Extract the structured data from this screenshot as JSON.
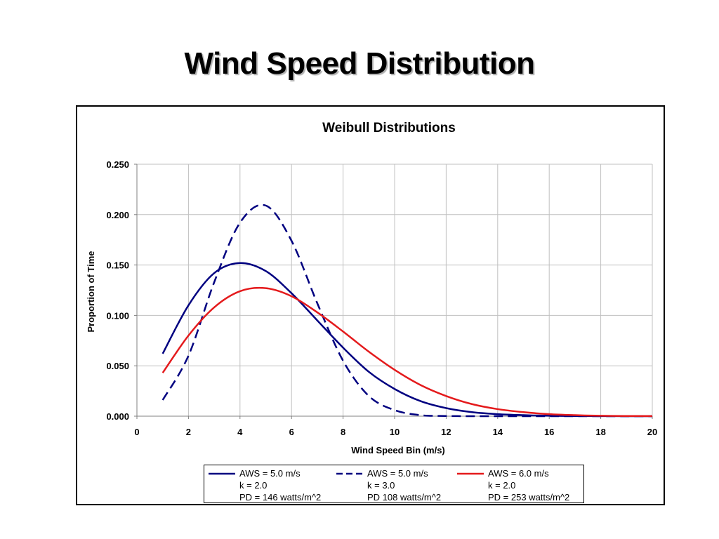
{
  "slide": {
    "title": "Wind Speed Distribution"
  },
  "chart_data": {
    "type": "line",
    "title": "Weibull Distributions",
    "xlabel": "Wind Speed Bin (m/s)",
    "ylabel": "Proportion of Time",
    "xlim": [
      0,
      20
    ],
    "ylim": [
      0,
      0.25
    ],
    "xticks": [
      0,
      2,
      4,
      6,
      8,
      10,
      12,
      14,
      16,
      18,
      20
    ],
    "yticks": [
      "0.000",
      "0.050",
      "0.100",
      "0.150",
      "0.200",
      "0.250"
    ],
    "grid": true,
    "legend_position": "bottom",
    "series": [
      {
        "name": "AWS = 5.0 m/s",
        "legend_lines": [
          "AWS = 5.0 m/s",
          "k = 2.0",
          "PD = 146 watts/m^2"
        ],
        "color": "#000080",
        "dash": "solid",
        "x": [
          1,
          2,
          3,
          4,
          5,
          6,
          7,
          8,
          9,
          10,
          11,
          12,
          13,
          14,
          15,
          16,
          17,
          18,
          19,
          20
        ],
        "y": [
          0.062,
          0.11,
          0.142,
          0.152,
          0.144,
          0.122,
          0.095,
          0.068,
          0.044,
          0.027,
          0.015,
          0.008,
          0.004,
          0.002,
          0.001,
          0.0004,
          0.0002,
          0.0001,
          0.0,
          0.0
        ]
      },
      {
        "name": "AWS = 5.0 m/s",
        "legend_lines": [
          "AWS = 5.0 m/s",
          "k = 3.0",
          "PD 108 watts/m^2"
        ],
        "color": "#000080",
        "dash": "dashed",
        "x": [
          1,
          2,
          3,
          4,
          5,
          6,
          7,
          8,
          9,
          10,
          11,
          12,
          13,
          14,
          15,
          16,
          17,
          18,
          19,
          20
        ],
        "y": [
          0.016,
          0.06,
          0.133,
          0.192,
          0.209,
          0.174,
          0.112,
          0.055,
          0.02,
          0.006,
          0.001,
          0.0002,
          0.0,
          0.0,
          0.0,
          0.0,
          0.0,
          0.0,
          0.0,
          0.0
        ]
      },
      {
        "name": "AWS = 6.0 m/s",
        "legend_lines": [
          "AWS = 6.0 m/s",
          "k = 2.0",
          "PD = 253 watts/m^2"
        ],
        "color": "#e41a1c",
        "dash": "solid",
        "x": [
          1,
          2,
          3,
          4,
          5,
          6,
          7,
          8,
          9,
          10,
          11,
          12,
          13,
          14,
          15,
          16,
          17,
          18,
          19,
          20
        ],
        "y": [
          0.043,
          0.08,
          0.108,
          0.124,
          0.127,
          0.119,
          0.103,
          0.084,
          0.064,
          0.046,
          0.031,
          0.02,
          0.012,
          0.007,
          0.004,
          0.002,
          0.001,
          0.0004,
          0.0002,
          0.0001
        ]
      }
    ]
  }
}
